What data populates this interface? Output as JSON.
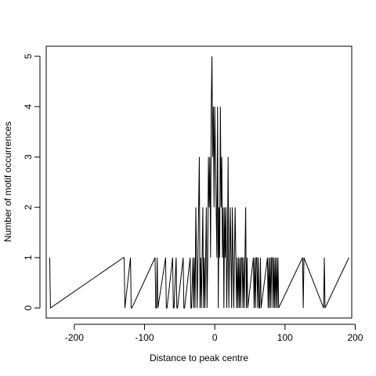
{
  "chart_data": {
    "type": "line",
    "title": "",
    "xlabel": "Distance to peak centre",
    "ylabel": "Number of motif occurrences",
    "xlim": [
      -240,
      195
    ],
    "ylim": [
      -0.2,
      5.2
    ],
    "xticks": [
      -200,
      -100,
      0,
      100,
      200
    ],
    "yticks": [
      0,
      1,
      2,
      3,
      4,
      5
    ],
    "xtick_labels": [
      "-200",
      "-100",
      "0",
      "100",
      "200"
    ],
    "ytick_labels": [
      "0",
      "1",
      "2",
      "3",
      "4",
      "5"
    ],
    "grid": false,
    "x": [
      -235,
      -234,
      -130,
      -129,
      -128,
      -120,
      -119,
      -118,
      -85,
      -84,
      -83,
      -82,
      -81,
      -70,
      -69,
      -68,
      -60,
      -59,
      -58,
      -55,
      -54,
      -53,
      -45,
      -44,
      -43,
      -35,
      -34,
      -33,
      -31,
      -30,
      -29,
      -28,
      -27,
      -26,
      -25,
      -24,
      -23,
      -22,
      -21,
      -20,
      -19,
      -18,
      -17,
      -16,
      -15,
      -14,
      -13,
      -12,
      -11,
      -10,
      -9,
      -8,
      -7,
      -6,
      -5,
      -4,
      -3,
      -2,
      -1,
      0,
      1,
      2,
      3,
      4,
      5,
      6,
      7,
      8,
      9,
      10,
      11,
      12,
      13,
      14,
      15,
      16,
      17,
      18,
      19,
      20,
      21,
      22,
      23,
      24,
      25,
      26,
      27,
      28,
      29,
      30,
      31,
      32,
      33,
      34,
      35,
      36,
      37,
      38,
      39,
      40,
      41,
      42,
      43,
      44,
      45,
      46,
      47,
      55,
      56,
      57,
      58,
      59,
      60,
      61,
      62,
      63,
      64,
      65,
      66,
      75,
      76,
      77,
      78,
      79,
      80,
      81,
      82,
      83,
      84,
      85,
      86,
      87,
      88,
      89,
      90,
      91,
      125,
      126,
      127,
      155,
      156,
      157,
      191
    ],
    "y": [
      1,
      0,
      1,
      1,
      0,
      1,
      0,
      0,
      1,
      0,
      0,
      1,
      0,
      1,
      0,
      0,
      1,
      0,
      0,
      1,
      0,
      0,
      1,
      0,
      0,
      1,
      0,
      0,
      1,
      0,
      1,
      0,
      2,
      1,
      0,
      1,
      2,
      3,
      0,
      1,
      0,
      1,
      2,
      0,
      1,
      0,
      1,
      2,
      0,
      1,
      3,
      2,
      3,
      1,
      4,
      5,
      3,
      4,
      2,
      4,
      3,
      2,
      1,
      4,
      0,
      2,
      1,
      4,
      2,
      3,
      1,
      2,
      0,
      2,
      1,
      2,
      0,
      1,
      3,
      0,
      1,
      2,
      1,
      0,
      2,
      1,
      0,
      1,
      2,
      1,
      0,
      1,
      0,
      1,
      0,
      1,
      0,
      1,
      1,
      0,
      1,
      0,
      1,
      2,
      0,
      1,
      0,
      1,
      0,
      1,
      0,
      1,
      1,
      0,
      1,
      0,
      0,
      1,
      0,
      1,
      0,
      1,
      0,
      1,
      0,
      1,
      1,
      0,
      1,
      0,
      1,
      0,
      1,
      0,
      1,
      0,
      1,
      0,
      1,
      0,
      1,
      0,
      1
    ]
  }
}
